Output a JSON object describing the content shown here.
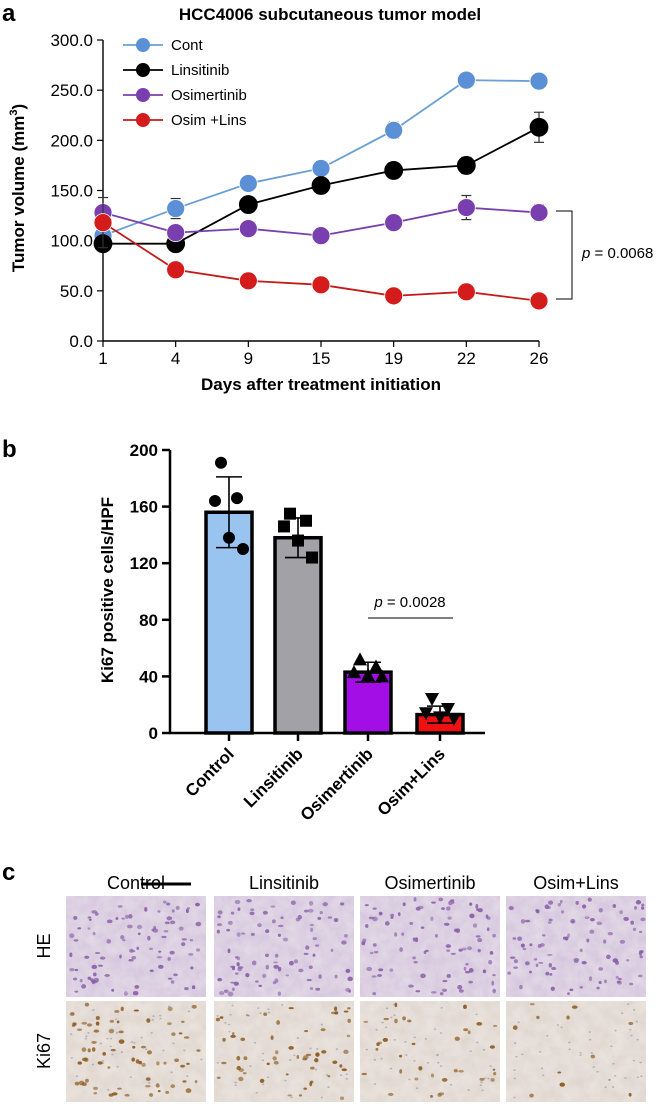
{
  "chart_data": [
    {
      "panel": "a",
      "type": "line",
      "title": "HCC4006 subcutaneous tumor model",
      "xlabel": "Days after treatment initiation",
      "ylabel_main": "Tumor volume (mm",
      "ylabel_sup": "3",
      "ylabel_close": ")",
      "categories": [
        "1",
        "4",
        "9",
        "15",
        "19",
        "22",
        "26"
      ],
      "yticks": [
        "0.0",
        "50.0",
        "100.0",
        "150.0",
        "200.0",
        "250.0",
        "300.0"
      ],
      "ylim": [
        0,
        300
      ],
      "series": [
        {
          "name": "Cont",
          "color": "#6a9fd4",
          "marker": "#5b8fd6",
          "values": [
            105,
            132,
            157,
            172,
            210,
            260,
            259
          ],
          "err": [
            5,
            10,
            5,
            5,
            8,
            5,
            5
          ]
        },
        {
          "name": "Linsitinib",
          "color": "#000000",
          "marker": "#000000",
          "values": [
            97,
            97,
            136,
            155,
            170,
            175,
            213
          ],
          "err": [
            5,
            5,
            5,
            5,
            5,
            8,
            15
          ]
        },
        {
          "name": "Osimertinib",
          "color": "#7a3fae",
          "marker": "#7a3fae",
          "values": [
            128,
            108,
            112,
            105,
            118,
            133,
            128
          ],
          "err": [
            5,
            5,
            5,
            5,
            5,
            12,
            8
          ]
        },
        {
          "name": "Osim +Lins",
          "color": "#c41a1a",
          "marker": "#d41c1c",
          "values": [
            118,
            71,
            60,
            56,
            45,
            49,
            40
          ],
          "err": [
            25,
            5,
            4,
            4,
            4,
            4,
            4
          ]
        }
      ],
      "annotation": {
        "p_symbol": "p",
        "p_rest": " = 0.0068"
      }
    },
    {
      "panel": "b",
      "type": "bar",
      "ylabel": "Ki67 positive cells/HPF",
      "yticks": [
        "0",
        "40",
        "80",
        "120",
        "160",
        "200"
      ],
      "ylim": [
        0,
        200
      ],
      "categories": [
        "Control",
        "Linsitinib",
        "Osimertinib",
        "Osim+Lins"
      ],
      "values": [
        156,
        138,
        43,
        13
      ],
      "err": [
        25,
        14,
        7,
        6
      ],
      "colors": [
        "#99c4f0",
        "#a1a1a6",
        "#a30de6",
        "#ee1111"
      ],
      "points": [
        [
          191,
          166,
          164,
          138,
          130
        ],
        [
          155,
          150,
          146,
          136,
          124
        ],
        [
          52,
          47,
          43,
          41,
          40
        ],
        [
          24,
          17,
          14,
          11,
          10
        ]
      ],
      "point_shapes": [
        "circle",
        "square",
        "triangle",
        "inv-triangle"
      ],
      "annotation": {
        "p_symbol": "p",
        "p_rest": " = 0.0028"
      }
    }
  ],
  "panel_c": {
    "letter": "c",
    "columns": [
      "Control",
      "Linsitinib",
      "Osimertinib",
      "Osim+Lins"
    ],
    "rows": [
      "HE",
      "Ki67"
    ]
  },
  "panel_letters": {
    "a": "a",
    "b": "b"
  }
}
